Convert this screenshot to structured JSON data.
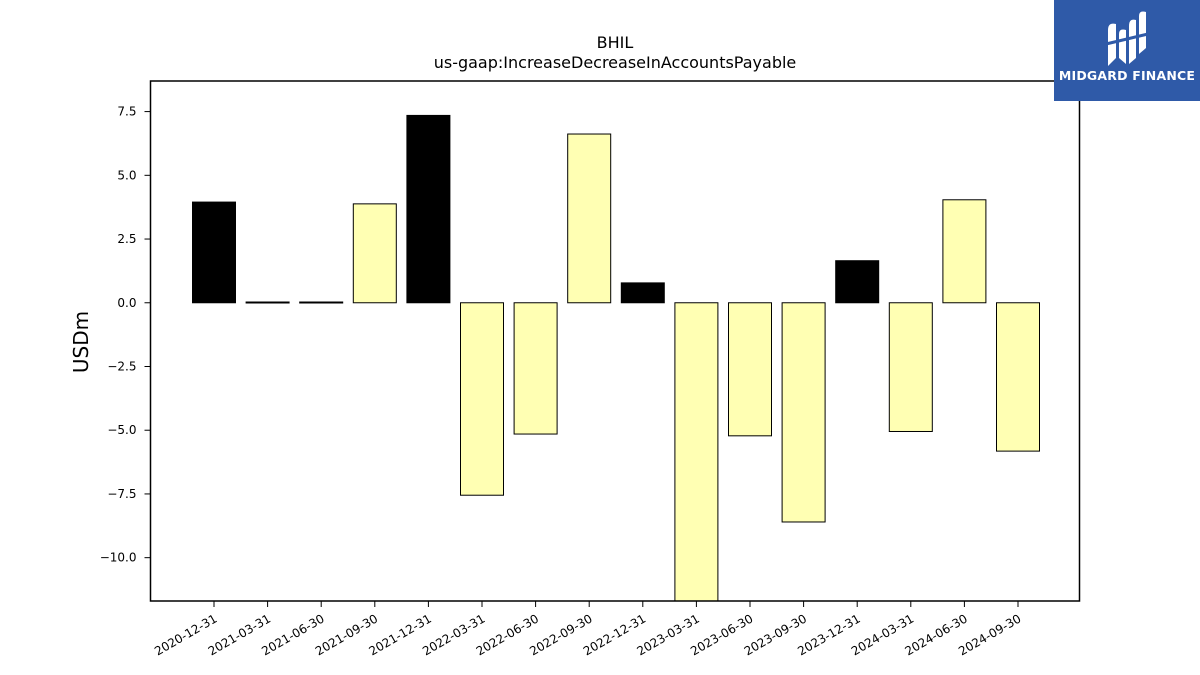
{
  "chart_data": {
    "type": "bar",
    "title": "BHIL",
    "subtitle": "us-gaap:IncreaseDecreaseInAccountsPayable",
    "xlabel": "",
    "ylabel": "USDm",
    "ylim": [
      -11.7,
      8.7
    ],
    "yticks": [
      7.5,
      5.0,
      2.5,
      0.0,
      -2.5,
      -5.0,
      -7.5,
      -10.0
    ],
    "ytick_labels": [
      "7.5",
      "5.0",
      "2.5",
      "0.0",
      "−2.5",
      "−5.0",
      "−7.5",
      "−10.0"
    ],
    "categories": [
      "2020-12-31",
      "2021-03-31",
      "2021-06-30",
      "2021-09-30",
      "2021-12-31",
      "2022-03-31",
      "2022-06-30",
      "2022-09-30",
      "2022-12-31",
      "2023-03-31",
      "2023-06-30",
      "2023-09-30",
      "2023-12-31",
      "2024-03-31",
      "2024-06-30",
      "2024-09-30"
    ],
    "values": [
      3.95,
      0.03,
      0.03,
      3.88,
      7.35,
      -7.55,
      -5.15,
      6.62,
      0.78,
      -11.7,
      -5.22,
      -8.6,
      1.65,
      -5.05,
      4.04,
      -5.82
    ],
    "bar_colors": [
      "#000000",
      "#000000",
      "#000000",
      "#ffffb3",
      "#000000",
      "#ffffb3",
      "#ffffb3",
      "#ffffb3",
      "#000000",
      "#ffffb3",
      "#ffffb3",
      "#ffffb3",
      "#000000",
      "#ffffb3",
      "#ffffb3",
      "#ffffb3"
    ],
    "grid": false,
    "legend": "none"
  },
  "logo": {
    "text": "MIDGARD FINANCE",
    "background": "#2f5aa8",
    "color": "#ffffff"
  }
}
